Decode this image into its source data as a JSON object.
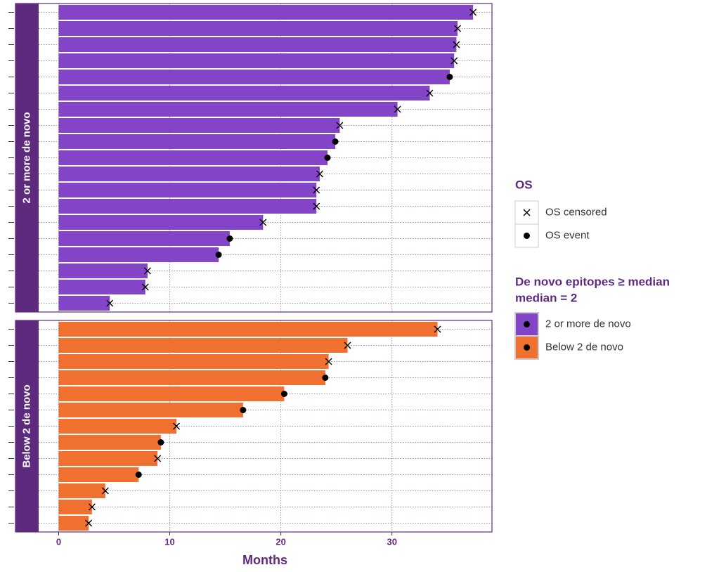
{
  "chart_data": {
    "type": "bar",
    "orientation": "horizontal",
    "xlabel": "Months",
    "xlim": [
      -1.8,
      39
    ],
    "xticks": [
      0,
      10,
      20,
      30
    ],
    "grid": true,
    "marker_legend": {
      "title": "OS",
      "entries": [
        "OS censored",
        "OS event"
      ]
    },
    "fill_legend": {
      "title": [
        "De novo epitopes ≥ median",
        "median = 2"
      ]
    },
    "panels": [
      {
        "name": "2 or more de novo",
        "color": "#8444c8",
        "values": [
          37.3,
          35.9,
          35.8,
          35.6,
          35.2,
          33.4,
          30.5,
          25.3,
          24.9,
          24.2,
          23.5,
          23.2,
          23.2,
          18.4,
          15.4,
          14.4,
          8.0,
          7.8,
          4.6
        ],
        "events": [
          0,
          0,
          0,
          0,
          1,
          0,
          0,
          0,
          1,
          1,
          0,
          0,
          0,
          0,
          1,
          1,
          0,
          0,
          0
        ]
      },
      {
        "name": "Below 2 de novo",
        "color": "#f07030",
        "values": [
          34.1,
          26.0,
          24.3,
          24.0,
          20.3,
          16.6,
          10.6,
          9.2,
          8.9,
          7.2,
          4.2,
          3.0,
          2.7
        ],
        "events": [
          0,
          0,
          0,
          1,
          1,
          1,
          0,
          1,
          0,
          1,
          0,
          0,
          0
        ]
      }
    ]
  }
}
